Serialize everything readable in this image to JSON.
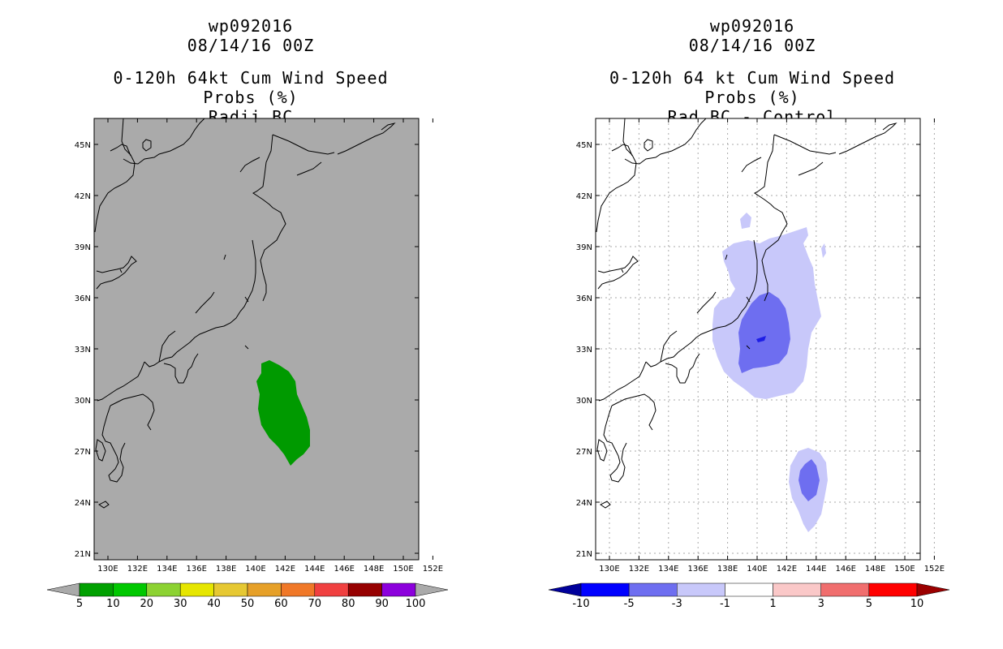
{
  "left": {
    "id": "wp092016",
    "date": "08/14/16 00Z",
    "title": "0-120h 64kt Cum Wind Speed Probs (%)",
    "subtitle": "Radii BC",
    "background": "#aaaaaa",
    "legend": {
      "labels": [
        "5",
        "10",
        "20",
        "30",
        "40",
        "50",
        "60",
        "70",
        "80",
        "90",
        "100"
      ],
      "colors": [
        "#aaaaaa",
        "#00a000",
        "#00c800",
        "#8cd232",
        "#e6e600",
        "#e6c832",
        "#e6a028",
        "#f07828",
        "#f04040",
        "#960000",
        "#8c00dc",
        "#aaaaaa"
      ]
    }
  },
  "right": {
    "id": "wp092016",
    "date": "08/14/16 00Z",
    "title": "0-120h 64 kt Cum Wind Speed Probs (%)",
    "subtitle": "Rad BC - Control",
    "background": "#ffffff",
    "legend": {
      "labels": [
        "-10",
        "-5",
        "-3",
        "-1",
        "1",
        "3",
        "5",
        "10"
      ],
      "colors": [
        "#00009b",
        "#0000ff",
        "#6e6ef0",
        "#c8c8fa",
        "#ffffff",
        "#fac8c8",
        "#f06e6e",
        "#ff0000",
        "#9b0000"
      ]
    }
  },
  "axes": {
    "lat_labels": [
      "45N",
      "42N",
      "39N",
      "36N",
      "33N",
      "30N",
      "27N",
      "24N",
      "21N"
    ],
    "lon_labels": [
      "130E",
      "132E",
      "134E",
      "136E",
      "138E",
      "140E",
      "142E",
      "144E",
      "146E",
      "148E",
      "150E",
      "152E"
    ]
  },
  "colors": {
    "green_fill": "#009a00",
    "blue_light": "#c8c8fa",
    "blue_mid": "#6e6ef0",
    "blue_dark": "#1e1ee6"
  }
}
